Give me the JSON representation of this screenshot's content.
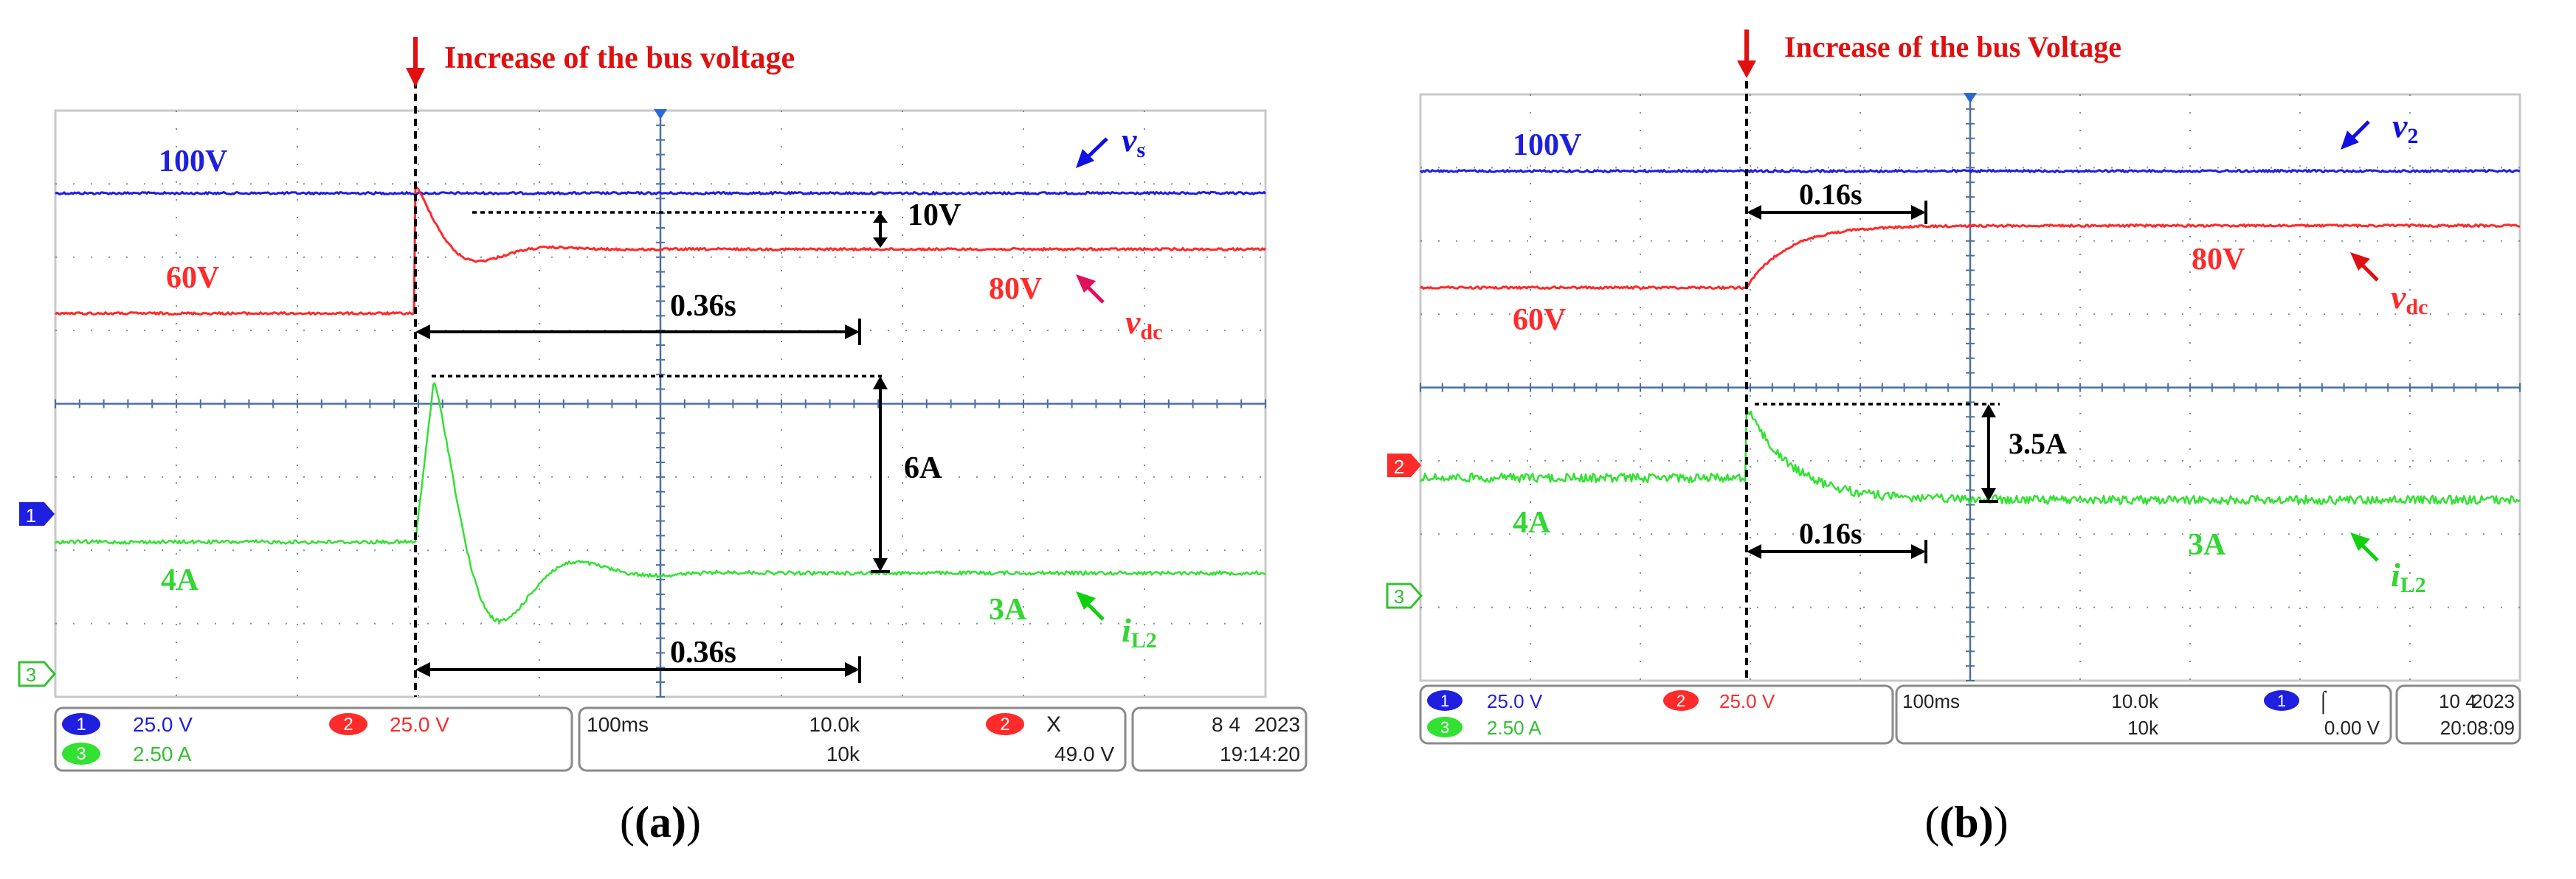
{
  "colors": {
    "ch1": "#1f1fe0",
    "ch2": "#ff2a2a",
    "ch3": "#33e133",
    "grid": "#4b6ea3",
    "arrow": "#e01010",
    "annot": "#000000",
    "ch1_arrow": "#1010e0",
    "vdc_arrow": "#e0105a",
    "il2_arrow": "#10d010"
  },
  "chart_data": [
    {
      "panel_label": "(a)",
      "type": "line",
      "x_unit": "s",
      "time_per_div": 0.1,
      "divisions_x": 10,
      "event_label": "Increase of the bus voltage",
      "event_time": 0.295,
      "series": [
        {
          "name": "v_s",
          "label_main": "v",
          "label_sub": "s",
          "level_label": "100V"
        },
        {
          "name": "v_dc",
          "label_main": "v",
          "label_sub": "dc",
          "start_label": "60V",
          "end_label": "80V"
        },
        {
          "name": "i_L2",
          "label_main": "i",
          "label_sub": "L2",
          "start_label": "4A",
          "end_label": "3A"
        }
      ],
      "annotations": {
        "overshoot_v": "10V",
        "overshoot_i": "6A",
        "settle_v": "0.36s",
        "settle_i": "0.36s"
      },
      "status": {
        "ch1_num": "1",
        "ch1_scale": "25.0 V",
        "ch2_num": "2",
        "ch2_scale": "25.0 V",
        "ch3_num": "3",
        "ch3_scale": "2.50 A",
        "timebase": "100ms",
        "sample_rate": "10.0k",
        "record": "10k",
        "trig_channel": "2",
        "trig_symbol": "X",
        "trig_level": "49.0 V",
        "date": "8 4",
        "year": "2023",
        "time": "19:14:20"
      },
      "left_markers": [
        "1",
        "3"
      ]
    },
    {
      "panel_label": "(b)",
      "type": "line",
      "x_unit": "s",
      "time_per_div": 0.1,
      "divisions_x": 10,
      "event_label": "Increase of the bus Voltage",
      "event_time": 0.292,
      "series": [
        {
          "name": "v_2",
          "label_main": "v",
          "label_sub": "2",
          "level_label": "100V"
        },
        {
          "name": "v_dc",
          "label_main": "v",
          "label_sub": "dc",
          "start_label": "60V",
          "end_label": "80V"
        },
        {
          "name": "i_L2",
          "label_main": "i",
          "label_sub": "L2",
          "start_label": "4A",
          "end_label": "3A"
        }
      ],
      "annotations": {
        "overshoot_i": "3.5A",
        "settle_v": "0.16s",
        "settle_i": "0.16s"
      },
      "status": {
        "ch1_num": "1",
        "ch1_scale": "25.0 V",
        "ch2_num": "2",
        "ch2_scale": "25.0 V",
        "ch3_num": "3",
        "ch3_scale": "2.50 A",
        "timebase": "100ms",
        "sample_rate": "10.0k",
        "record": "10k",
        "trig_channel": "1",
        "trig_symbol": "⌠",
        "trig_level": "0.00 V",
        "date": "10 4",
        "year": "2023",
        "time": "20:08:09"
      },
      "left_markers": [
        "2",
        "3"
      ]
    }
  ]
}
